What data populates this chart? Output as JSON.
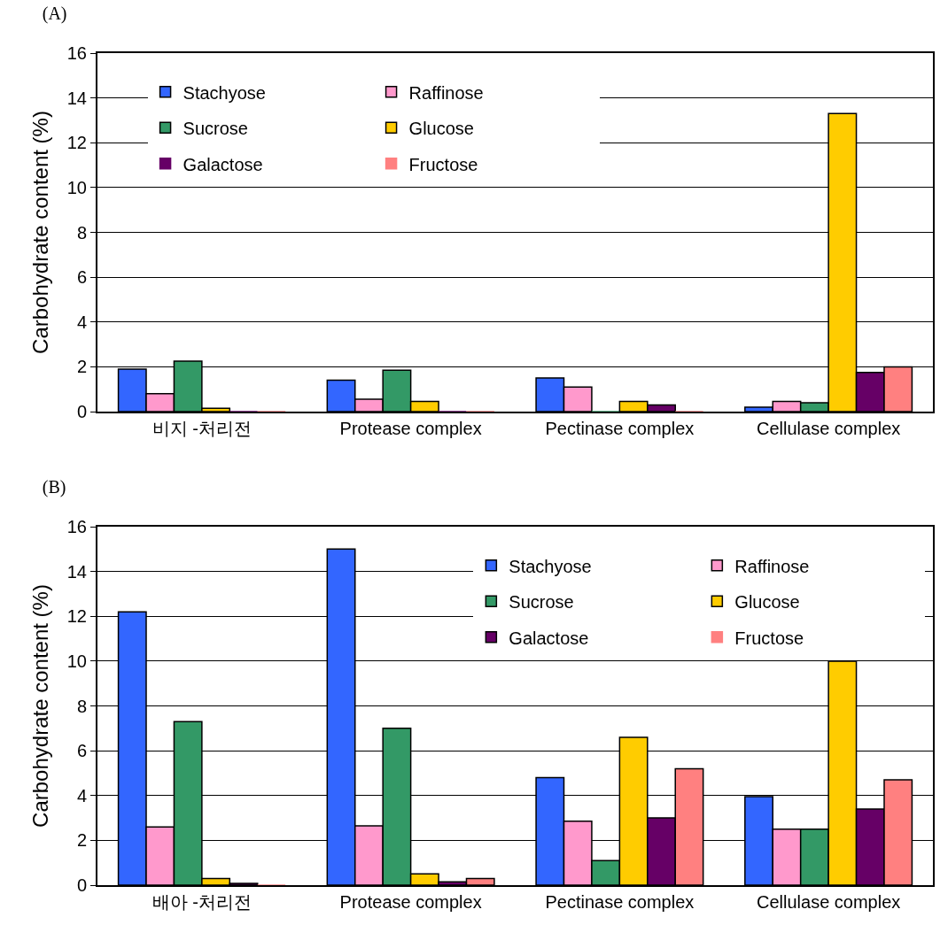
{
  "chart_data": [
    {
      "type": "bar",
      "title": "(A)",
      "ylabel": "Carbohydrate content (%)",
      "categories": [
        "비지 -처리전",
        "Protease complex",
        "Pectinase complex",
        "Cellulase complex"
      ],
      "series": [
        {
          "name": "Stachyose",
          "color": "#3366ff",
          "values": [
            1.9,
            1.4,
            1.5,
            0.2
          ]
        },
        {
          "name": "Raffinose",
          "color": "#ff99cc",
          "values": [
            0.8,
            0.55,
            1.1,
            0.45
          ]
        },
        {
          "name": "Sucrose",
          "color": "#339966",
          "values": [
            2.25,
            1.85,
            0,
            0.4
          ]
        },
        {
          "name": "Glucose",
          "color": "#ffcc00",
          "values": [
            0.15,
            0.45,
            0.45,
            13.3
          ]
        },
        {
          "name": "Galactose",
          "color": "#660066",
          "values": [
            0,
            0,
            0.3,
            1.75
          ]
        },
        {
          "name": "Fructose",
          "color": "#ff8080",
          "values": [
            0,
            0,
            0,
            2.0
          ]
        }
      ],
      "ylim": [
        0,
        16
      ],
      "yticks": [
        0,
        2,
        4,
        6,
        8,
        10,
        12,
        14,
        16
      ],
      "grid": "y",
      "legend": "top left"
    },
    {
      "type": "bar",
      "title": "(B)",
      "ylabel": "Carbohydrate content (%)",
      "categories": [
        "배아 -처리전",
        "Protease complex",
        "Pectinase complex",
        "Cellulase complex"
      ],
      "series": [
        {
          "name": "Stachyose",
          "color": "#3366ff",
          "values": [
            12.2,
            15.0,
            4.8,
            3.95
          ]
        },
        {
          "name": "Raffinose",
          "color": "#ff99cc",
          "values": [
            2.6,
            2.65,
            2.85,
            2.5
          ]
        },
        {
          "name": "Sucrose",
          "color": "#339966",
          "values": [
            7.3,
            7.0,
            1.1,
            2.5
          ]
        },
        {
          "name": "Glucose",
          "color": "#ffcc00",
          "values": [
            0.3,
            0.5,
            6.6,
            10.0
          ]
        },
        {
          "name": "Galactose",
          "color": "#660066",
          "values": [
            0.08,
            0.15,
            3.0,
            3.4
          ]
        },
        {
          "name": "Fructose",
          "color": "#ff8080",
          "values": [
            0,
            0.3,
            5.2,
            4.7
          ]
        }
      ],
      "ylim": [
        0,
        16
      ],
      "yticks": [
        0,
        2,
        4,
        6,
        8,
        10,
        12,
        14,
        16
      ],
      "grid": "y",
      "legend": "top right"
    }
  ]
}
